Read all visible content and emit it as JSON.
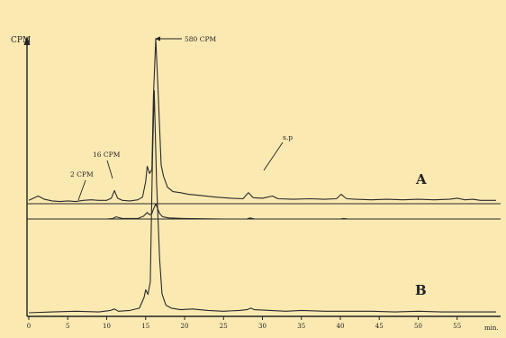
{
  "chart_data": {
    "type": "line",
    "ylabel": "CPM",
    "xunit": "min.",
    "xlim": [
      0,
      60
    ],
    "xticks": [
      0,
      5,
      10,
      15,
      20,
      25,
      30,
      35,
      40,
      45,
      50,
      55
    ],
    "labels": [
      "A",
      "B"
    ],
    "annotations": [
      {
        "text": "2 CPM",
        "x": 7.5
      },
      {
        "text": "16 CPM",
        "x": 11.0
      },
      {
        "text": "580 CPM",
        "x": 16.3
      },
      {
        "text": "s.p",
        "x": 31.0
      }
    ],
    "series": [
      {
        "x": [
          0,
          0.6,
          1.2,
          2,
          3,
          4,
          5,
          6,
          7,
          8,
          9,
          10,
          10.6,
          11,
          11.4,
          12,
          13,
          14,
          14.6,
          15,
          15.2,
          15.5,
          15.8,
          16.0,
          16.3,
          16.6,
          17.0,
          17.3,
          17.8,
          18.5,
          19.5,
          20.5,
          22,
          24,
          26,
          27.5,
          28.2,
          28.8,
          30,
          31.3,
          32,
          34,
          36,
          38,
          39.5,
          40.1,
          40.8,
          42,
          44,
          46,
          48,
          50,
          52,
          54,
          55,
          56,
          57,
          58,
          60
        ],
        "values": [
          6,
          10,
          14,
          8,
          5,
          4,
          5,
          4,
          6,
          7,
          6,
          6,
          10,
          24,
          10,
          6,
          5,
          7,
          12,
          40,
          68,
          55,
          62,
          195,
          300,
          205,
          70,
          50,
          30,
          22,
          20,
          17,
          15,
          12,
          10,
          9,
          20,
          11,
          10,
          14,
          9,
          8,
          9,
          8,
          9,
          17,
          9,
          8,
          7,
          8,
          7,
          8,
          7,
          8,
          10,
          7,
          8,
          6,
          6
        ]
      },
      {
        "x": [
          0,
          5,
          10,
          10.8,
          11.2,
          12,
          14,
          14.7,
          15.2,
          15.5,
          15.8,
          16.0,
          16.3,
          16.8,
          17.2,
          18,
          20,
          25,
          28,
          28.4,
          29,
          35,
          40,
          40.4,
          41,
          50,
          60
        ],
        "values": [
          0,
          0,
          0,
          1,
          4,
          1,
          1,
          5,
          12,
          8,
          10,
          18,
          28,
          10,
          4,
          2,
          1,
          0,
          0,
          2,
          0,
          0,
          0,
          1,
          0,
          0,
          0
        ]
      },
      {
        "x": [
          0,
          3,
          6,
          9,
          10.5,
          11,
          11.5,
          13,
          14.2,
          14.8,
          15.0,
          15.3,
          15.6,
          15.9,
          16.1,
          16.4,
          16.8,
          17.1,
          17.6,
          18.3,
          19.5,
          21,
          23,
          25,
          27,
          28,
          28.5,
          29,
          31,
          33,
          35,
          38,
          41,
          44,
          47,
          50,
          53,
          56,
          60
        ],
        "values": [
          0,
          1,
          2,
          1,
          3,
          5,
          2,
          3,
          6,
          20,
          30,
          24,
          40,
          210,
          290,
          170,
          70,
          25,
          10,
          6,
          4,
          5,
          3,
          2,
          3,
          4,
          6,
          4,
          3,
          2,
          3,
          2,
          2,
          2,
          1,
          2,
          1,
          1,
          1
        ]
      }
    ]
  }
}
